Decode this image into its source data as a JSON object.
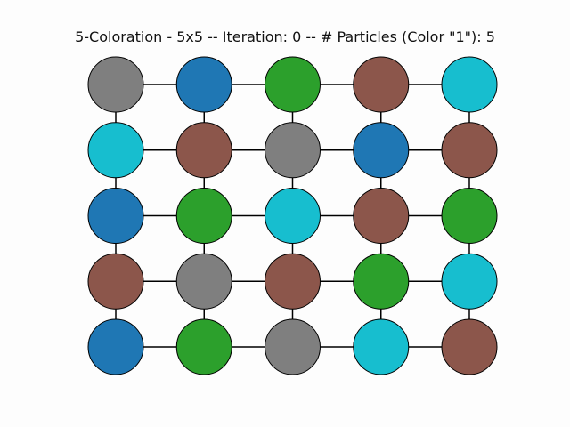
{
  "title": "5-Coloration - 5x5 -- Iteration: 0 -- # Particles (Color \"1\"): 5",
  "palette": {
    "gray": "#7f7f7f",
    "blue": "#1f77b4",
    "green": "#2ca02c",
    "brown": "#8c564b",
    "cyan": "#17becf"
  },
  "edge_color": "#000000",
  "node_stroke": "#000000",
  "grid": {
    "rows": 5,
    "cols": 5,
    "node_colors": [
      [
        "gray",
        "blue",
        "green",
        "brown",
        "cyan"
      ],
      [
        "cyan",
        "brown",
        "gray",
        "blue",
        "brown"
      ],
      [
        "blue",
        "green",
        "cyan",
        "brown",
        "green"
      ],
      [
        "brown",
        "gray",
        "brown",
        "green",
        "cyan"
      ],
      [
        "blue",
        "green",
        "gray",
        "cyan",
        "brown"
      ]
    ]
  }
}
